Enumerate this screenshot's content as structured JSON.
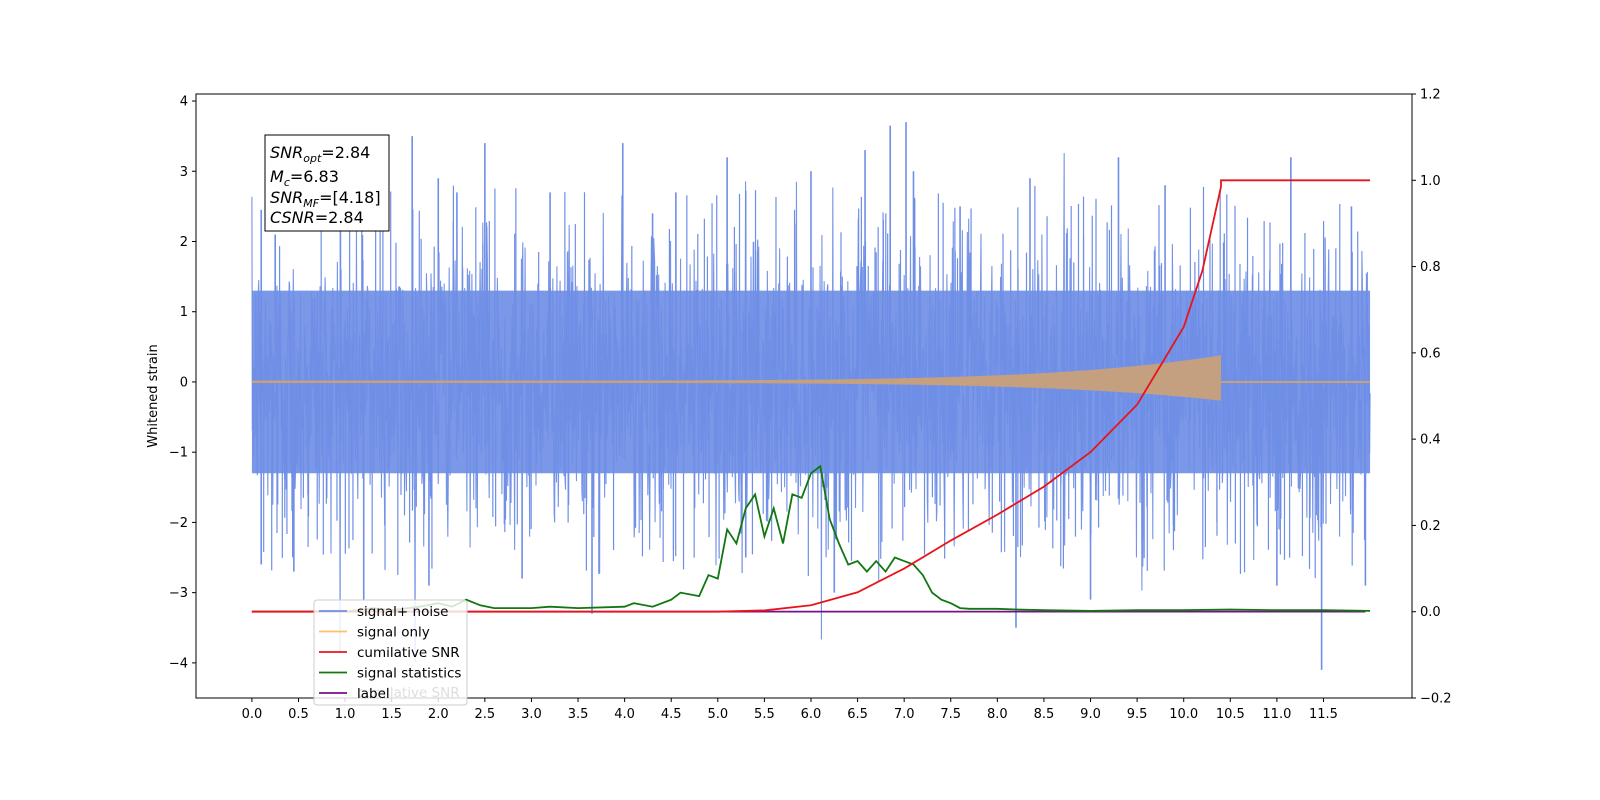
{
  "chart_data": {
    "type": "line",
    "ylabel": "Whitened strain",
    "x_ticks": [
      "0.0",
      "0.5",
      "1.0",
      "1.5",
      "2.0",
      "2.5",
      "3.0",
      "3.5",
      "4.0",
      "4.5",
      "5.0",
      "5.5",
      "6.0",
      "6.5",
      "7.0",
      "7.5",
      "8.0",
      "8.5",
      "9.0",
      "9.5",
      "10.0",
      "10.5",
      "11.0",
      "11.5"
    ],
    "xlim": [
      -0.6,
      12.45
    ],
    "ylim": [
      -4.5,
      4.1
    ],
    "yticks": [
      -4,
      -3,
      -2,
      -1,
      0,
      1,
      2,
      3,
      4
    ],
    "y2lim": [
      -0.2,
      1.2
    ],
    "y2ticks": [
      -0.2,
      0.0,
      0.2,
      0.4,
      0.6,
      0.8,
      1.0,
      1.2
    ],
    "annotation": {
      "snr_opt_label": "SNR",
      "snr_opt_sub": "opt",
      "snr_opt_value": "=2.84",
      "mc_label": "M",
      "mc_sub": "c",
      "mc_value": "=6.83",
      "snr_mf_label": "SNR",
      "snr_mf_sub": "MF",
      "snr_mf_value": "=[4.18]",
      "csnr_label": "CSNR",
      "csnr_value": "=2.84"
    },
    "legend": [
      {
        "label": "signal+ noise",
        "color": "#6f8ee6"
      },
      {
        "label": "signal only",
        "color": "#ffbf66"
      },
      {
        "label": "cumilative SNR",
        "color": "#e8141b"
      },
      {
        "label": "signal statistics",
        "color": "#117711"
      },
      {
        "label": "label",
        "color": "#7a0f8a"
      }
    ],
    "legend_hidden_text": "cumilative SNR",
    "series": [
      {
        "name": "signal+ noise",
        "axis": "left",
        "color": "#6f8ee6",
        "description_range": [
          0.0,
          12.0
        ],
        "envelope_typical": [
          -1.6,
          1.6
        ],
        "spikes": [
          {
            "x": 0.1,
            "y": 2.45
          },
          {
            "x": 0.1,
            "y": -2.6
          },
          {
            "x": 0.25,
            "y": 2.1
          },
          {
            "x": 0.45,
            "y": -2.7
          },
          {
            "x": 0.95,
            "y": 2.7
          },
          {
            "x": 1.2,
            "y": -3.1
          },
          {
            "x": 1.72,
            "y": 3.5
          },
          {
            "x": 1.9,
            "y": -2.9
          },
          {
            "x": 2.0,
            "y": 2.9
          },
          {
            "x": 2.2,
            "y": 2.7
          },
          {
            "x": 2.5,
            "y": 3.4
          },
          {
            "x": 2.9,
            "y": -2.8
          },
          {
            "x": 3.2,
            "y": 2.7
          },
          {
            "x": 3.65,
            "y": -3.3
          },
          {
            "x": 3.98,
            "y": 3.4
          },
          {
            "x": 4.3,
            "y": 2.4
          },
          {
            "x": 4.55,
            "y": 2.7
          },
          {
            "x": 5.1,
            "y": 3.2
          },
          {
            "x": 5.3,
            "y": -2.5
          },
          {
            "x": 6.0,
            "y": 3.0
          },
          {
            "x": 6.25,
            "y": -3.0
          },
          {
            "x": 6.58,
            "y": 3.3
          },
          {
            "x": 6.85,
            "y": 3.65
          },
          {
            "x": 7.02,
            "y": 3.7
          },
          {
            "x": 7.1,
            "y": 3.0
          },
          {
            "x": 7.6,
            "y": 2.5
          },
          {
            "x": 8.2,
            "y": -3.5
          },
          {
            "x": 8.35,
            "y": 2.9
          },
          {
            "x": 9.0,
            "y": -3.1
          },
          {
            "x": 9.3,
            "y": 3.2
          },
          {
            "x": 9.8,
            "y": 2.8
          },
          {
            "x": 11.0,
            "y": -2.9
          },
          {
            "x": 11.15,
            "y": 3.2
          },
          {
            "x": 11.48,
            "y": -4.1
          },
          {
            "x": 11.8,
            "y": 2.5
          },
          {
            "x": 11.95,
            "y": -2.9
          }
        ]
      },
      {
        "name": "signal only",
        "axis": "left",
        "color": "#c8a07a",
        "chirp_start": 0.0,
        "chirp_merger": 10.4,
        "end": 12.0,
        "peak_amplitude": 0.38,
        "early_amplitude": 0.02
      },
      {
        "name": "cumilative SNR",
        "axis": "right",
        "color": "#e8141b",
        "x": [
          0.0,
          5.0,
          5.5,
          6.0,
          6.5,
          7.0,
          7.5,
          8.0,
          8.5,
          9.0,
          9.5,
          10.0,
          10.2,
          10.4,
          10.4,
          12.0
        ],
        "y": [
          0.0,
          0.0,
          0.003,
          0.015,
          0.045,
          0.1,
          0.165,
          0.225,
          0.29,
          0.37,
          0.48,
          0.66,
          0.79,
          0.985,
          1.0,
          1.0
        ]
      },
      {
        "name": "signal statistics",
        "axis": "left",
        "color": "#117711",
        "x": [
          0.0,
          1.0,
          1.3,
          1.5,
          1.8,
          2.0,
          2.15,
          2.3,
          2.45,
          2.6,
          3.0,
          3.2,
          3.5,
          4.0,
          4.1,
          4.3,
          4.5,
          4.6,
          4.8,
          4.9,
          5.0,
          5.1,
          5.2,
          5.3,
          5.4,
          5.5,
          5.6,
          5.7,
          5.8,
          5.9,
          6.0,
          6.1,
          6.2,
          6.3,
          6.4,
          6.5,
          6.6,
          6.7,
          6.8,
          6.9,
          7.0,
          7.1,
          7.2,
          7.3,
          7.4,
          7.5,
          7.6,
          7.7,
          8.0,
          8.2,
          8.5,
          9.0,
          9.5,
          10.0,
          10.5,
          11.0,
          11.5,
          12.0
        ],
        "y": [
          -3.27,
          -3.27,
          -3.22,
          -3.25,
          -3.2,
          -3.15,
          -3.2,
          -3.1,
          -3.18,
          -3.22,
          -3.22,
          -3.2,
          -3.22,
          -3.2,
          -3.15,
          -3.2,
          -3.1,
          -3.0,
          -3.05,
          -2.75,
          -2.8,
          -2.1,
          -2.3,
          -1.8,
          -1.6,
          -2.2,
          -1.8,
          -2.3,
          -1.6,
          -1.65,
          -1.3,
          -1.2,
          -1.95,
          -2.3,
          -2.6,
          -2.55,
          -2.7,
          -2.55,
          -2.7,
          -2.5,
          -2.55,
          -2.6,
          -2.75,
          -3.0,
          -3.1,
          -3.15,
          -3.22,
          -3.23,
          -3.23,
          -3.24,
          -3.25,
          -3.26,
          -3.25,
          -3.25,
          -3.24,
          -3.25,
          -3.25,
          -3.26
        ]
      },
      {
        "name": "label",
        "axis": "left",
        "color": "#7a0f8a",
        "x": [
          0.0,
          11.95
        ],
        "y": [
          -3.27,
          -3.27
        ]
      }
    ],
    "grid": false,
    "legend_position": "lower left"
  }
}
